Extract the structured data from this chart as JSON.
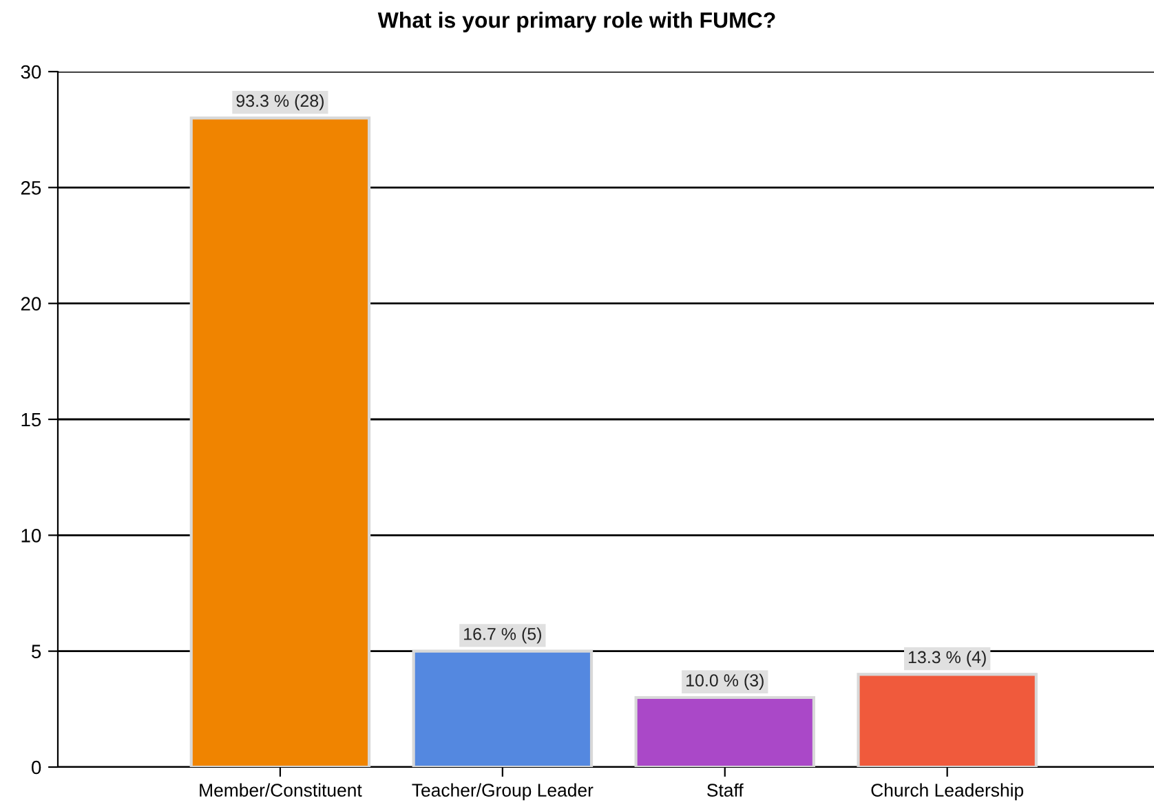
{
  "chart_data": {
    "type": "bar",
    "title": "What is your primary role with FUMC?",
    "categories": [
      "Member/Constituent",
      "Teacher/Group Leader",
      "Staff",
      "Church Leadership"
    ],
    "values": [
      28,
      5,
      3,
      4
    ],
    "colors": [
      "#f08400",
      "#5488e0",
      "#aa48c8",
      "#f05a3c"
    ],
    "value_labels": [
      "93.3 % (28)",
      "16.7 % (5)",
      "10.0 % (3)",
      "13.3 % (4)"
    ],
    "ylim": [
      0,
      30
    ],
    "yticks": [
      0,
      5,
      10,
      15,
      20,
      25,
      30
    ],
    "grid": "y",
    "legend": false
  }
}
